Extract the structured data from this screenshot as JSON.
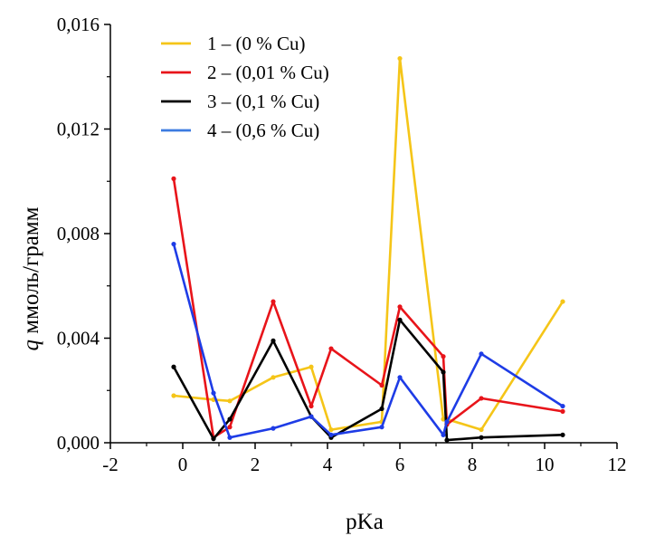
{
  "chart_data": {
    "type": "line",
    "xlabel": "pKa",
    "ylabel_symbol": "q",
    "ylabel_rest": " ммоль/грамм",
    "xlim": [
      -2,
      12
    ],
    "ylim": [
      0,
      0.016
    ],
    "x_ticks": [
      -2,
      0,
      2,
      4,
      6,
      8,
      10,
      12
    ],
    "x_tick_labels": [
      "-2",
      "0",
      "2",
      "4",
      "6",
      "8",
      "10",
      "12"
    ],
    "y_ticks": [
      0,
      0.004,
      0.008,
      0.012,
      0.016
    ],
    "y_tick_labels": [
      "0,000",
      "0,004",
      "0,008",
      "0,012",
      "0,016"
    ],
    "grid": false,
    "legend_position": "top-left",
    "series": [
      {
        "name": "1 – (0 % Cu)",
        "color": "#F5C518",
        "x": [
          -0.25,
          0.85,
          1.3,
          2.5,
          3.55,
          4.1,
          5.5,
          6.0,
          7.2,
          7.3,
          8.25,
          10.5
        ],
        "y": [
          0.0018,
          0.00165,
          0.0016,
          0.0025,
          0.0029,
          0.0005,
          0.0008,
          0.0147,
          0.0009,
          0.0009,
          0.0005,
          0.0054
        ]
      },
      {
        "name": "2 – (0,01 % Cu)",
        "color": "#E8141A",
        "x": [
          -0.25,
          0.85,
          1.3,
          2.5,
          3.55,
          4.1,
          5.5,
          6.0,
          7.2,
          7.3,
          8.25,
          10.5
        ],
        "y": [
          0.0101,
          0.0002,
          0.0006,
          0.0054,
          0.0014,
          0.0036,
          0.0022,
          0.0052,
          0.0033,
          0.0007,
          0.0017,
          0.0012
        ]
      },
      {
        "name": "3 – (0,1 % Cu)",
        "color": "#000000",
        "x": [
          -0.25,
          0.85,
          1.3,
          2.5,
          3.55,
          4.1,
          5.5,
          6.0,
          7.2,
          7.3,
          8.25,
          10.5
        ],
        "y": [
          0.0029,
          0.00015,
          0.0009,
          0.0039,
          0.001,
          0.0002,
          0.0013,
          0.0047,
          0.0027,
          0.0001,
          0.0002,
          0.0003
        ]
      },
      {
        "name": "4 – (0,6 % Cu)",
        "color": "#1E3CE6",
        "legend_color": "#3D7BE0",
        "x": [
          -0.25,
          0.85,
          1.3,
          2.5,
          3.55,
          4.1,
          5.5,
          6.0,
          7.2,
          7.3,
          8.25,
          10.5
        ],
        "y": [
          0.0076,
          0.0019,
          0.0002,
          0.00055,
          0.001,
          0.0003,
          0.0006,
          0.0025,
          0.0003,
          0.0008,
          0.0034,
          0.0014
        ]
      }
    ]
  }
}
